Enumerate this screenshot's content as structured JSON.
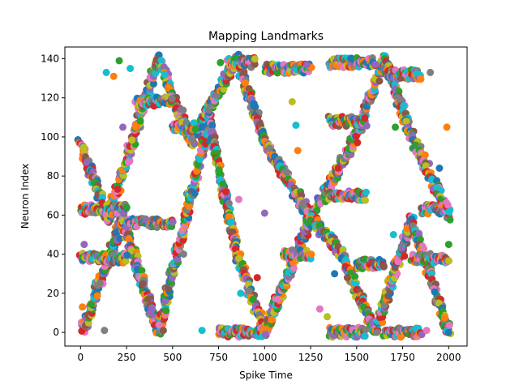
{
  "chart_data": {
    "type": "scatter",
    "title": "Mapping Landmarks",
    "xlabel": "Spike Time",
    "ylabel": "Neuron Index",
    "xlim": [
      -85,
      2100
    ],
    "ylim": [
      -7,
      146
    ],
    "xticks": [
      0,
      250,
      500,
      750,
      1000,
      1250,
      1500,
      1750,
      2000
    ],
    "yticks": [
      0,
      20,
      40,
      60,
      80,
      100,
      120,
      140
    ],
    "grid": false,
    "legend": "none",
    "marker_colors": [
      "#1f77b4",
      "#ff7f0e",
      "#2ca02c",
      "#d62728",
      "#9467bd",
      "#8c564b",
      "#e377c2",
      "#7f7f7f",
      "#bcbd22",
      "#17becf"
    ],
    "trajectories": [
      {
        "x": [
          0,
          150
        ],
        "y": [
          96,
          58
        ]
      },
      {
        "x": [
          10,
          230
        ],
        "y": [
          1,
          58
        ]
      },
      {
        "x": [
          150,
          420
        ],
        "y": [
          58,
          140
        ]
      },
      {
        "x": [
          230,
          420
        ],
        "y": [
          58,
          0
        ]
      },
      {
        "x": [
          420,
          700
        ],
        "y": [
          0,
          108
        ]
      },
      {
        "x": [
          420,
          600
        ],
        "y": [
          140,
          98
        ]
      },
      {
        "x": [
          600,
          850
        ],
        "y": [
          98,
          140
        ]
      },
      {
        "x": [
          700,
          850
        ],
        "y": [
          108,
          40
        ]
      },
      {
        "x": [
          850,
          1000
        ],
        "y": [
          140,
          98
        ]
      },
      {
        "x": [
          850,
          1000
        ],
        "y": [
          40,
          0
        ]
      },
      {
        "x": [
          1000,
          1250
        ],
        "y": [
          98,
          58
        ]
      },
      {
        "x": [
          1000,
          1250
        ],
        "y": [
          0,
          58
        ]
      },
      {
        "x": [
          1250,
          1500
        ],
        "y": [
          58,
          100
        ]
      },
      {
        "x": [
          1250,
          1420
        ],
        "y": [
          58,
          40
        ]
      },
      {
        "x": [
          1420,
          1600
        ],
        "y": [
          40,
          0
        ]
      },
      {
        "x": [
          1500,
          1650
        ],
        "y": [
          100,
          140
        ]
      },
      {
        "x": [
          1600,
          1800
        ],
        "y": [
          0,
          58
        ]
      },
      {
        "x": [
          1650,
          1800
        ],
        "y": [
          140,
          100
        ]
      },
      {
        "x": [
          1800,
          2000
        ],
        "y": [
          100,
          60
        ]
      },
      {
        "x": [
          1800,
          2000
        ],
        "y": [
          58,
          0
        ]
      }
    ],
    "bands": [
      {
        "x": [
          0,
          250
        ],
        "y": 38
      },
      {
        "x": [
          0,
          250
        ],
        "y": 63
      },
      {
        "x": [
          250,
          500
        ],
        "y": 56
      },
      {
        "x": [
          300,
          500
        ],
        "y": 118
      },
      {
        "x": [
          500,
          620
        ],
        "y": 105
      },
      {
        "x": [
          580,
          620
        ],
        "y": 70
      },
      {
        "x": [
          750,
          1000
        ],
        "y": 0
      },
      {
        "x": [
          800,
          950
        ],
        "y": 138
      },
      {
        "x": [
          1000,
          1250
        ],
        "y": 135
      },
      {
        "x": [
          1100,
          1250
        ],
        "y": 40
      },
      {
        "x": [
          1350,
          1600
        ],
        "y": 138
      },
      {
        "x": [
          1350,
          1550
        ],
        "y": 108
      },
      {
        "x": [
          1350,
          1550
        ],
        "y": 70
      },
      {
        "x": [
          1350,
          1550
        ],
        "y": 0
      },
      {
        "x": [
          1500,
          1650
        ],
        "y": 35
      },
      {
        "x": [
          1650,
          1850
        ],
        "y": 132
      },
      {
        "x": [
          1650,
          1850
        ],
        "y": 0
      },
      {
        "x": [
          1850,
          2000
        ],
        "y": 63
      },
      {
        "x": [
          1800,
          2000
        ],
        "y": 38
      }
    ],
    "scattered_points": [
      {
        "x": 10,
        "y": 13
      },
      {
        "x": 20,
        "y": 45
      },
      {
        "x": 130,
        "y": 1
      },
      {
        "x": 140,
        "y": 133
      },
      {
        "x": 180,
        "y": 131
      },
      {
        "x": 210,
        "y": 139
      },
      {
        "x": 230,
        "y": 105
      },
      {
        "x": 260,
        "y": 87
      },
      {
        "x": 270,
        "y": 135
      },
      {
        "x": 300,
        "y": 105
      },
      {
        "x": 380,
        "y": 10
      },
      {
        "x": 450,
        "y": 1
      },
      {
        "x": 560,
        "y": 40
      },
      {
        "x": 660,
        "y": 1
      },
      {
        "x": 760,
        "y": 138
      },
      {
        "x": 790,
        "y": 72
      },
      {
        "x": 860,
        "y": 68
      },
      {
        "x": 870,
        "y": 20
      },
      {
        "x": 940,
        "y": 117
      },
      {
        "x": 960,
        "y": 28
      },
      {
        "x": 1000,
        "y": 61
      },
      {
        "x": 1120,
        "y": 82
      },
      {
        "x": 1150,
        "y": 118
      },
      {
        "x": 1170,
        "y": 106
      },
      {
        "x": 1180,
        "y": 93
      },
      {
        "x": 1230,
        "y": 137
      },
      {
        "x": 1300,
        "y": 12
      },
      {
        "x": 1340,
        "y": 8
      },
      {
        "x": 1380,
        "y": 30
      },
      {
        "x": 1400,
        "y": 84
      },
      {
        "x": 1450,
        "y": 28
      },
      {
        "x": 1610,
        "y": 0
      },
      {
        "x": 1700,
        "y": 50
      },
      {
        "x": 1710,
        "y": 105
      },
      {
        "x": 1760,
        "y": 39
      },
      {
        "x": 1880,
        "y": 1
      },
      {
        "x": 1900,
        "y": 133
      },
      {
        "x": 1950,
        "y": 84
      },
      {
        "x": 1990,
        "y": 105
      },
      {
        "x": 2000,
        "y": 45
      }
    ]
  }
}
